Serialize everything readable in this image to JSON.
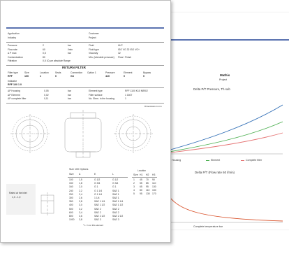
{
  "back_page": {
    "title": "Mathis",
    "subtitle": "Project",
    "chart1": {
      "title": "Delta P/T   Pressure, Th sub"
    },
    "chart1_legend": [
      "Housing",
      "Element",
      "Complete filter"
    ],
    "chart2": {
      "title": "Delta P/T   (Flow rate 60 l/min)"
    },
    "chart2_xlabel": "Complete temperature bar"
  },
  "front_page": {
    "fields_top": [
      {
        "label": "Application",
        "value": ""
      },
      {
        "label": "Industry",
        "value": ""
      },
      {
        "label": "Customer",
        "value": ""
      },
      {
        "label": "Project",
        "value": ""
      }
    ],
    "params_left": [
      {
        "label": "Pressure",
        "value": "2",
        "unit": "bar"
      },
      {
        "label": "Flow rate",
        "value": "60",
        "unit": "l/min"
      },
      {
        "label": "Δ P max",
        "value": "0,5",
        "unit": "bar"
      },
      {
        "label": "Contamination",
        "value": "80",
        "unit": ""
      },
      {
        "label": "Filtration",
        "value": "0,5 10 µm absolute Range",
        "unit": ""
      }
    ],
    "params_right": [
      {
        "label": "Fluid",
        "value": "HLP"
      },
      {
        "label": "Fluid type",
        "value": "ISO VG 32  ISO VG+"
      },
      {
        "label": "Viscosity",
        "value": "32"
      },
      {
        "label": "Min. (tolerable pressure)",
        "value": "Flow  / Finish"
      }
    ],
    "section_title": "RETURN FILTER",
    "header_row": [
      "Filter type",
      "Size",
      "Location",
      "Seals",
      "Connection",
      "Option 1",
      "Pressure",
      "Element",
      "Bypass"
    ],
    "value_row": [
      "RFF",
      "100",
      "1",
      "0",
      "G4",
      "",
      "410",
      "0",
      "0"
    ],
    "indicator_label": "Indicator",
    "order_code": "RFF 100 1 0",
    "results_left": [
      {
        "label": "ΔP Housing",
        "value": "0,05",
        "unit": "bar"
      },
      {
        "label": "ΔP Element",
        "value": "0,02",
        "unit": "bar"
      },
      {
        "label": "ΔP complete filter",
        "value": "0,11",
        "unit": "bar"
      }
    ],
    "results_right": [
      {
        "label": "Element type",
        "value": "RFF 1100 K10 NBR/2"
      },
      {
        "label": "Filter surface",
        "value": "1  1607"
      },
      {
        "label": "No. Elem. in the housing",
        "value": "1"
      }
    ],
    "drawing_note": "Dimensions in mm",
    "side_label": "Rated at the inlet",
    "side_value": "1,0 - 1,0",
    "table_title": "Size  100  Options",
    "table_headers": [
      "Size",
      "A",
      "E",
      "L"
    ],
    "table_rows": [
      [
        "100",
        "1,5",
        "G 1/2",
        "G 1/2"
      ],
      [
        "150",
        "1,8",
        "G 3/4",
        "G 3/4"
      ],
      [
        "160",
        "2,0",
        "G 1",
        "G 1"
      ],
      [
        "240",
        "2,2",
        "G 1 1/4",
        "SAE 1"
      ],
      [
        "250",
        "2,4",
        "G 1 1/4",
        "SAE 1"
      ],
      [
        "300",
        "2,6",
        "1 1/4",
        "SAE 1"
      ],
      [
        "350",
        "2,8",
        "SAE 1 1/4",
        "SAE 1 1/4"
      ],
      [
        "400",
        "3,0",
        "SAE 1 1/2",
        "SAE 1 1/2"
      ],
      [
        "500",
        "3,2",
        "SAE 2",
        "SAE 2"
      ],
      [
        "600",
        "3,4",
        "SAE 2",
        "SAE 2"
      ],
      [
        "800",
        "3,6",
        "SAE 2 1/2",
        "SAE 2 1/2"
      ],
      [
        "1000",
        "3,8",
        "SAE 3",
        "SAE 3"
      ]
    ],
    "table_footnote": "* 1 / 1 on this element",
    "mini_title": "Location",
    "mini_headers": [
      "Size",
      "H1",
      "H2",
      "H3"
    ],
    "mini_rows": [
      [
        "1",
        "45",
        "70",
        "90"
      ],
      [
        "2",
        "55",
        "85",
        "110"
      ],
      [
        "3",
        "65",
        "95",
        "130"
      ],
      [
        "4",
        "80",
        "110",
        "150"
      ],
      [
        "5",
        "95",
        "130",
        "170"
      ]
    ]
  },
  "colors": {
    "band": "#5a72b0",
    "housing": "#2f6db5",
    "element": "#4caf50",
    "complete": "#e57373",
    "chart2_line": "#d9532c"
  }
}
